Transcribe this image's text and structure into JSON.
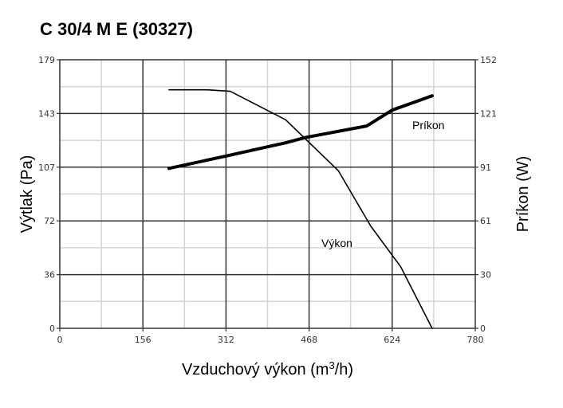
{
  "title": "C 30/4 M E (30327)",
  "chart_data": {
    "type": "line",
    "title": "C 30/4 M E (30327)",
    "xlabel": "Vzduchový výkon (m³/h)",
    "xlabel_main": "Vzduchový výkon (m",
    "xlabel_sup": "3",
    "xlabel_end": "/h)",
    "ylabel": "Výtlak (Pa)",
    "y2label": "Príkon (W)",
    "xlim": [
      0,
      780
    ],
    "ylim": [
      0,
      179
    ],
    "y2lim": [
      0,
      152
    ],
    "xticks": [
      "0",
      "156",
      "312",
      "468",
      "624",
      "780"
    ],
    "yticks": [
      "0",
      "36",
      "72",
      "107",
      "143",
      "179"
    ],
    "y2ticks": [
      "0",
      "30",
      "61",
      "91",
      "121",
      "152"
    ],
    "grid": true,
    "series": [
      {
        "name": "Výkon",
        "axis": "left",
        "x": [
          205,
          277,
          320,
          424,
          523,
          584,
          640,
          699
        ],
        "y": [
          159,
          159,
          158,
          139,
          105,
          68,
          41,
          0
        ]
      },
      {
        "name": "Príkon",
        "axis": "right",
        "x": [
          205,
          312,
          424,
          461,
          576,
          624,
          699
        ],
        "y": [
          90.5,
          97.5,
          105,
          108,
          114.5,
          123.5,
          131.6
        ]
      }
    ]
  }
}
